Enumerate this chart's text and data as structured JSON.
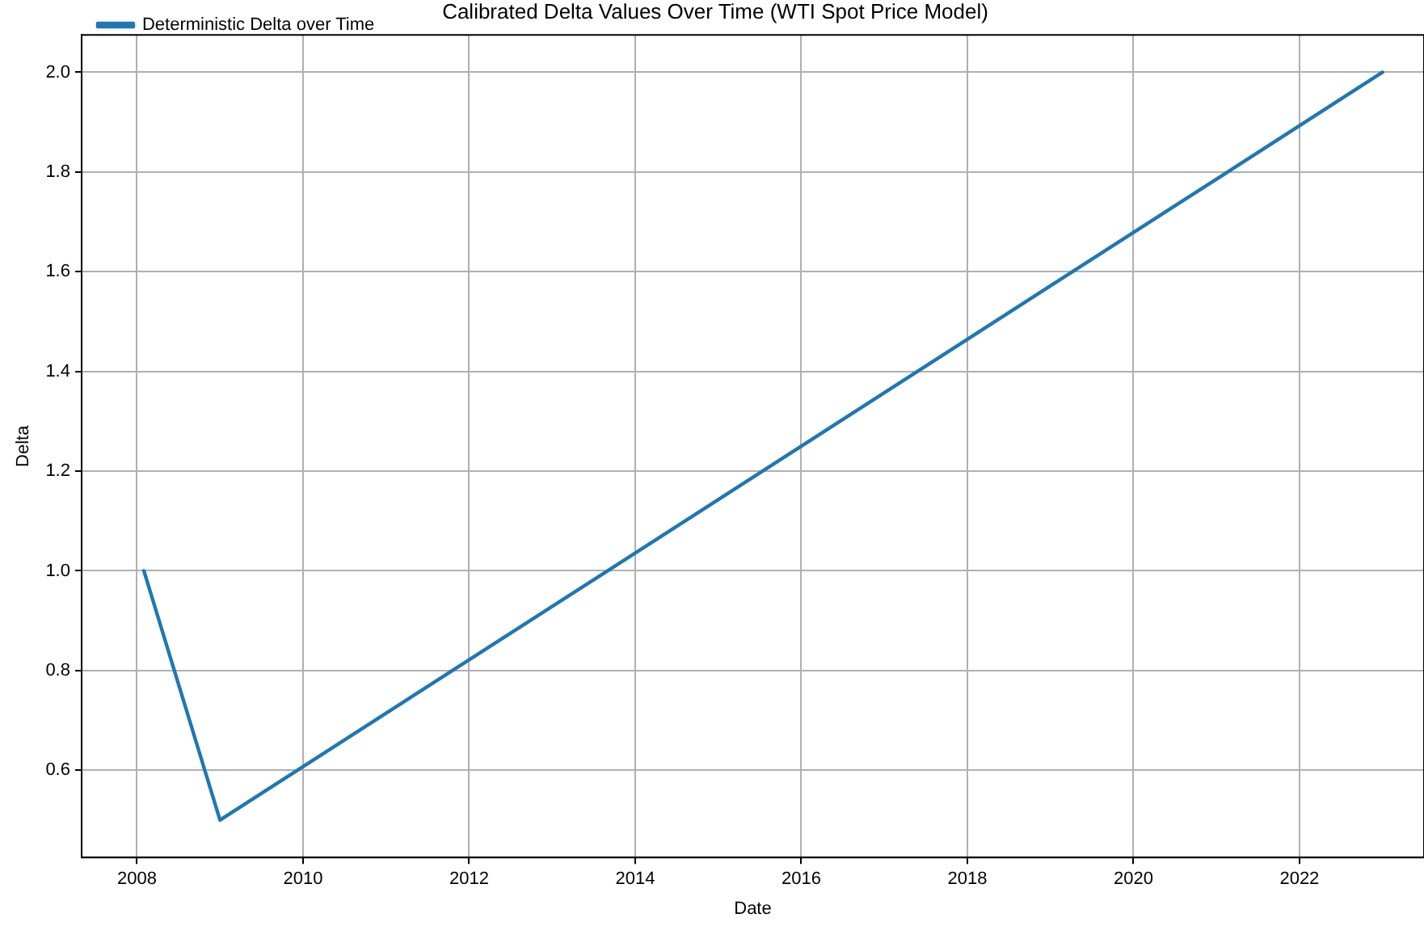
{
  "chart_data": {
    "type": "line",
    "title": "Calibrated Delta Values Over Time (WTI Spot Price Model)",
    "xlabel": "Date",
    "ylabel": "Delta",
    "x": [
      "2008-02",
      "2009-01",
      "2023-01"
    ],
    "series": [
      {
        "name": "Deterministic Delta over Time",
        "color": "#1f77b4",
        "values": [
          1.0,
          0.5,
          2.0
        ]
      }
    ],
    "xlim": [
      "2007-05",
      "2023-07"
    ],
    "xticks": [
      "2008",
      "2010",
      "2012",
      "2014",
      "2016",
      "2018",
      "2020",
      "2022"
    ],
    "ylim": [
      0.425,
      2.075
    ],
    "yticks": [
      {
        "value": 0.6,
        "label": "0.6"
      },
      {
        "value": 0.8,
        "label": "0.8"
      },
      {
        "value": 1.0,
        "label": "1.0"
      },
      {
        "value": 1.2,
        "label": "1.2"
      },
      {
        "value": 1.4,
        "label": "1.4"
      },
      {
        "value": 1.6,
        "label": "1.6"
      },
      {
        "value": 1.8,
        "label": "1.8"
      },
      {
        "value": 2.0,
        "label": "2.0"
      }
    ],
    "grid": true,
    "legend": "top left",
    "marker": "none",
    "line_style": "solid"
  }
}
